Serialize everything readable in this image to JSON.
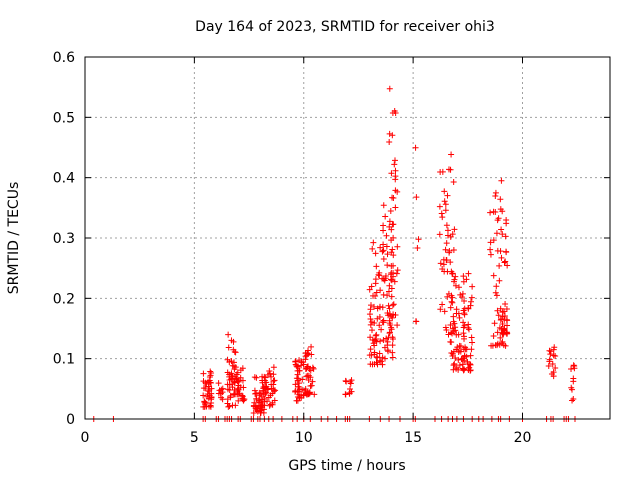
{
  "chart_data": {
    "type": "scatter",
    "title": "Day 164 of 2023, SRMTID for receiver ohi3",
    "xlabel": "GPS time / hours",
    "ylabel": "SRMTID / TECUs",
    "xlim": [
      0,
      24
    ],
    "ylim": [
      0,
      0.6
    ],
    "x_ticks": [
      0,
      5,
      10,
      15,
      20
    ],
    "y_ticks": [
      0,
      0.1,
      0.2,
      0.3,
      0.4,
      0.5,
      0.6
    ],
    "x_tick_labels": [
      "0",
      "5",
      "10",
      "15",
      "20"
    ],
    "y_tick_labels": [
      "0",
      "0.1",
      "0.2",
      "0.3",
      "0.4",
      "0.5",
      "0.6"
    ],
    "grid": true,
    "marker": "+",
    "color": "#ff0000",
    "zero_x": [
      0.4,
      1.3,
      5.4,
      5.5,
      6.0,
      6.1,
      6.4,
      6.5,
      6.6,
      6.7,
      7.0,
      7.1,
      7.6,
      7.7,
      7.9,
      8.0,
      8.2,
      8.4,
      8.6,
      9.0,
      9.5,
      9.7,
      10.0,
      10.3,
      10.8,
      11.1,
      11.5,
      11.9,
      12.0,
      12.1,
      13.0,
      13.5,
      13.9,
      14.4,
      15.0,
      15.1,
      16.0,
      16.3,
      16.6,
      16.8,
      17.0,
      17.3,
      17.7,
      18.0,
      18.2,
      18.6,
      18.9,
      19.0,
      19.4,
      20.0,
      21.1,
      21.3,
      21.4,
      21.9,
      22.0,
      22.1,
      22.4
    ],
    "clusters": [
      {
        "x": [
          5.4,
          5.8
        ],
        "y": [
          0.02,
          0.08
        ],
        "n": 40
      },
      {
        "x": [
          6.1,
          6.3
        ],
        "y": [
          0.03,
          0.06
        ],
        "n": 10
      },
      {
        "x": [
          6.5,
          6.9
        ],
        "y": [
          0.02,
          0.15
        ],
        "n": 45
      },
      {
        "x": [
          6.9,
          7.3
        ],
        "y": [
          0.03,
          0.09
        ],
        "n": 30
      },
      {
        "x": [
          7.7,
          8.2
        ],
        "y": [
          0.01,
          0.07
        ],
        "n": 40
      },
      {
        "x": [
          8.1,
          8.7
        ],
        "y": [
          0.02,
          0.09
        ],
        "n": 45
      },
      {
        "x": [
          9.6,
          10.0
        ],
        "y": [
          0.03,
          0.1
        ],
        "n": 40
      },
      {
        "x": [
          10.0,
          10.5
        ],
        "y": [
          0.04,
          0.12
        ],
        "n": 40
      },
      {
        "x": [
          11.9,
          12.2
        ],
        "y": [
          0.04,
          0.08
        ],
        "n": 12
      },
      {
        "x": [
          13.0,
          13.6
        ],
        "y": [
          0.09,
          0.3
        ],
        "n": 60
      },
      {
        "x": [
          13.6,
          14.1
        ],
        "y": [
          0.1,
          0.36
        ],
        "n": 60
      },
      {
        "x": [
          13.9,
          14.3
        ],
        "y": [
          0.13,
          0.56
        ],
        "n": 40
      },
      {
        "x": [
          15.1,
          15.3
        ],
        "y": [
          0.16,
          0.45
        ],
        "n": 6
      },
      {
        "x": [
          16.2,
          16.9
        ],
        "y": [
          0.14,
          0.44
        ],
        "n": 50
      },
      {
        "x": [
          16.7,
          17.4
        ],
        "y": [
          0.08,
          0.25
        ],
        "n": 60
      },
      {
        "x": [
          17.3,
          17.7
        ],
        "y": [
          0.08,
          0.25
        ],
        "n": 40
      },
      {
        "x": [
          18.5,
          19.3
        ],
        "y": [
          0.12,
          0.4
        ],
        "n": 60
      },
      {
        "x": [
          19.0,
          19.3
        ],
        "y": [
          0.14,
          0.21
        ],
        "n": 20
      },
      {
        "x": [
          21.2,
          21.5
        ],
        "y": [
          0.07,
          0.12
        ],
        "n": 15
      },
      {
        "x": [
          22.2,
          22.4
        ],
        "y": [
          0.03,
          0.09
        ],
        "n": 10
      }
    ]
  }
}
